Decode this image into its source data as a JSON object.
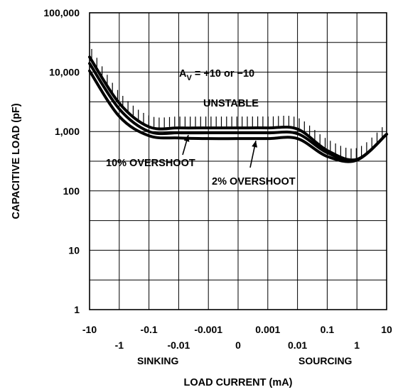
{
  "chart_data": {
    "type": "line",
    "title": "",
    "xlabel": "LOAD CURRENT (mA)",
    "ylabel": "CAPACITIVE LOAD (pF)",
    "yscale": "log",
    "ylim": [
      1,
      100000
    ],
    "grid": true,
    "x_ticks_top_row": [
      "-10",
      "-0.1",
      "-0.001",
      "0.001",
      "0.1",
      "10"
    ],
    "x_ticks_bottom_row": [
      "-1",
      "-0.01",
      "0",
      "0.01",
      "1"
    ],
    "x_region_labels": [
      "SINKING",
      "SOURCING"
    ],
    "y_ticks": [
      "100,000",
      "10,000",
      "1,000",
      "100",
      "10",
      "1"
    ],
    "x_tick_values": [
      -10,
      -1,
      -0.1,
      -0.01,
      -0.001,
      0,
      0.001,
      0.01,
      0.1,
      1,
      10
    ],
    "annotations": {
      "gain": {
        "base": "A",
        "sub": "V",
        "rest": " = +10 or −10"
      },
      "unstable": "UNSTABLE",
      "overshoot_10": "10% OVERSHOOT",
      "overshoot_2": "2% OVERSHOOT"
    },
    "series": [
      {
        "key": "upper-boundary",
        "x": [
          -10,
          -1,
          -0.1,
          -0.01,
          -0.001,
          0,
          0.001,
          0.01,
          0.1,
          1,
          10
        ],
        "values": [
          18000,
          3000,
          1200,
          1150,
          1150,
          1150,
          1150,
          1100,
          480,
          340,
          900
        ]
      },
      {
        "key": "overshoot-10",
        "x": [
          -10,
          -1,
          -0.1,
          -0.01,
          -0.001,
          0,
          0.001,
          0.01,
          0.1,
          1,
          10
        ],
        "values": [
          14000,
          2400,
          1000,
          950,
          950,
          950,
          950,
          920,
          440,
          335,
          900
        ]
      },
      {
        "key": "overshoot-2",
        "x": [
          -10,
          -1,
          -0.1,
          -0.01,
          -0.001,
          0,
          0.001,
          0.01,
          0.1,
          1,
          10
        ],
        "values": [
          10500,
          1800,
          850,
          780,
          760,
          760,
          760,
          760,
          380,
          330,
          900
        ]
      }
    ]
  }
}
